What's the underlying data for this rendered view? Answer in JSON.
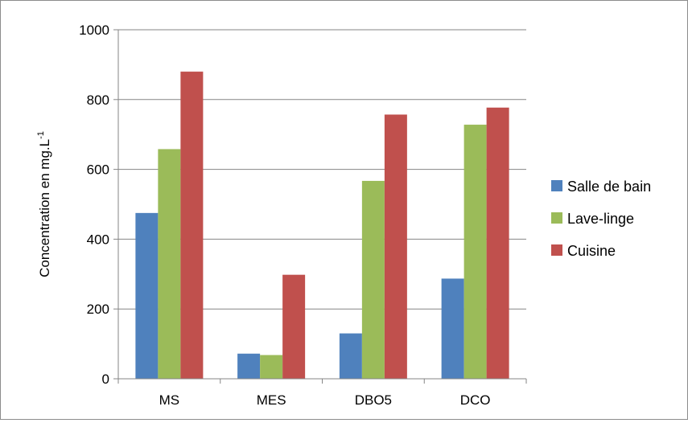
{
  "chart_data": {
    "type": "bar",
    "categories": [
      "MS",
      "MES",
      "DBO5",
      "DCO"
    ],
    "series": [
      {
        "name": "Salle de bain",
        "values": [
          475,
          72,
          130,
          287
        ],
        "color": "#4f81bd"
      },
      {
        "name": "Lave-linge",
        "values": [
          658,
          68,
          567,
          728
        ],
        "color": "#9bbb59"
      },
      {
        "name": "Cuisine",
        "values": [
          880,
          298,
          757,
          777
        ],
        "color": "#c0504d"
      }
    ],
    "ylabel": "Concentration en mg.L",
    "ylabel_superscript": "-1",
    "ylim": [
      0,
      1000
    ],
    "yticks": [
      0,
      200,
      400,
      600,
      800,
      1000
    ],
    "ytick_labels": [
      "0",
      "200",
      "400",
      "600",
      "800",
      "1000"
    ],
    "grid": true,
    "legend_position": "right"
  }
}
